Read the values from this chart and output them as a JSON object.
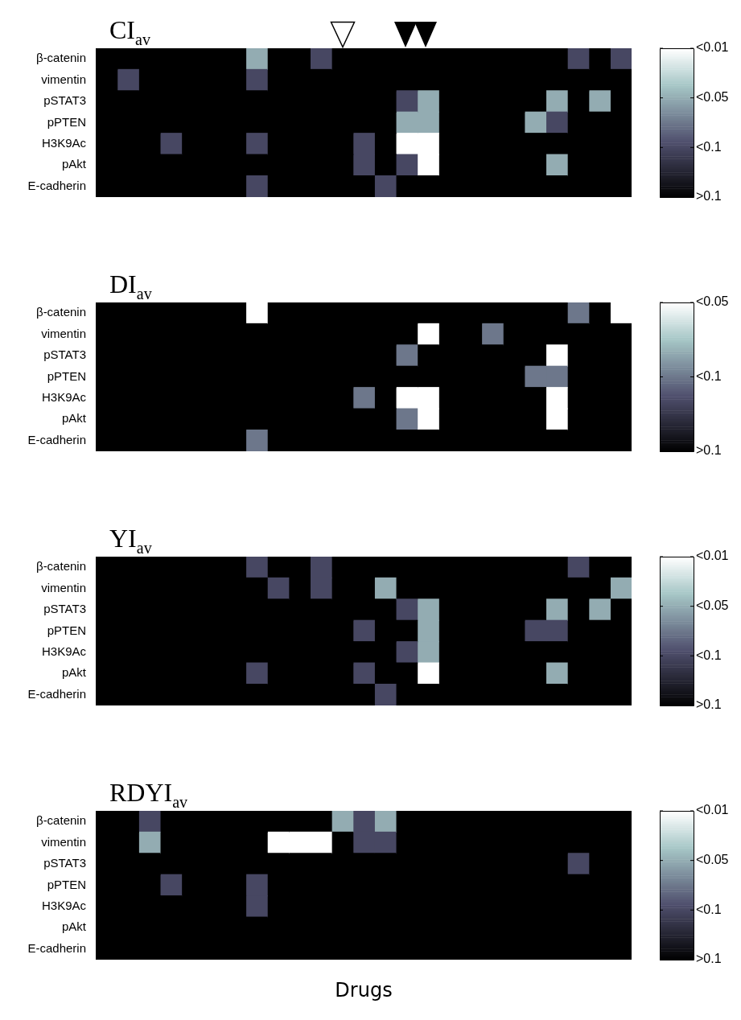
{
  "chart_data": [
    {
      "type": "heatmap",
      "title": "CI$_{av}$",
      "categories": [
        null,
        null,
        null,
        null,
        null,
        null,
        null,
        null,
        null,
        null,
        null,
        null,
        null,
        null,
        null,
        null,
        null,
        null,
        null,
        null,
        null,
        null,
        null,
        null,
        null
      ],
      "y_categories": [
        "β-catenin",
        "vimentin",
        "pSTAT3",
        "pPTEN",
        "H3K9Ac",
        "pAkt",
        "E-cadherin"
      ],
      "cells": [
        [
          0,
          0,
          0,
          0,
          0,
          0,
          0,
          2,
          0,
          0,
          1,
          0,
          0,
          0,
          0,
          0,
          0,
          0,
          0,
          0,
          0,
          0,
          1,
          0,
          1
        ],
        [
          0,
          1,
          0,
          0,
          0,
          0,
          0,
          1,
          0,
          0,
          0,
          0,
          0,
          0,
          0,
          0,
          0,
          0,
          0,
          0,
          0,
          0,
          0,
          0,
          0
        ],
        [
          0,
          0,
          0,
          0,
          0,
          0,
          0,
          0,
          0,
          0,
          0,
          0,
          0,
          0,
          1,
          2,
          0,
          0,
          0,
          0,
          0,
          2,
          0,
          2,
          0
        ],
        [
          0,
          0,
          0,
          0,
          0,
          0,
          0,
          0,
          0,
          0,
          0,
          0,
          0,
          0,
          2,
          2,
          0,
          0,
          0,
          0,
          2,
          1,
          0,
          0,
          0
        ],
        [
          0,
          0,
          0,
          1,
          0,
          0,
          0,
          1,
          0,
          0,
          0,
          0,
          1,
          0,
          3,
          3,
          0,
          0,
          0,
          0,
          0,
          0,
          0,
          0,
          0
        ],
        [
          0,
          0,
          0,
          0,
          0,
          0,
          0,
          0,
          0,
          0,
          0,
          0,
          1,
          0,
          1,
          3,
          0,
          0,
          0,
          0,
          0,
          2,
          0,
          0,
          0
        ],
        [
          0,
          0,
          0,
          0,
          0,
          0,
          0,
          1,
          0,
          0,
          0,
          0,
          0,
          1,
          0,
          0,
          0,
          0,
          0,
          0,
          0,
          0,
          0,
          0,
          0
        ]
      ],
      "clim": [
        0,
        3
      ],
      "cticks": [
        {
          "value": 0,
          "label": ">0.1"
        },
        {
          "value": 1,
          "label": "<0.1"
        },
        {
          "value": 2,
          "label": "<0.05"
        },
        {
          "value": 3,
          "label": "<0.01"
        }
      ]
    },
    {
      "type": "heatmap",
      "title": "DI$_{av}$",
      "categories": [
        null,
        null,
        null,
        null,
        null,
        null,
        null,
        null,
        null,
        null,
        null,
        null,
        null,
        null,
        null,
        null,
        null,
        null,
        null,
        null,
        null,
        null,
        null,
        null,
        null
      ],
      "y_categories": [
        "β-catenin",
        "vimentin",
        "pSTAT3",
        "pPTEN",
        "H3K9Ac",
        "pAkt",
        "E-cadherin"
      ],
      "cells": [
        [
          0,
          0,
          0,
          0,
          0,
          0,
          0,
          2,
          0,
          0,
          0,
          0,
          0,
          0,
          0,
          0,
          0,
          0,
          0,
          0,
          0,
          0,
          1,
          0,
          2
        ],
        [
          0,
          0,
          0,
          0,
          0,
          0,
          0,
          0,
          0,
          0,
          0,
          0,
          0,
          0,
          0,
          2,
          0,
          0,
          1,
          0,
          0,
          0,
          0,
          0,
          0
        ],
        [
          0,
          0,
          0,
          0,
          0,
          0,
          0,
          0,
          0,
          0,
          0,
          0,
          0,
          0,
          1,
          0,
          0,
          0,
          0,
          0,
          0,
          2,
          0,
          0,
          0
        ],
        [
          0,
          0,
          0,
          0,
          0,
          0,
          0,
          0,
          0,
          0,
          0,
          0,
          0,
          0,
          0,
          0,
          0,
          0,
          0,
          0,
          1,
          1,
          0,
          0,
          0
        ],
        [
          0,
          0,
          0,
          0,
          0,
          0,
          0,
          0,
          0,
          0,
          0,
          0,
          1,
          0,
          2,
          2,
          0,
          0,
          0,
          0,
          0,
          2,
          0,
          0,
          0
        ],
        [
          0,
          0,
          0,
          0,
          0,
          0,
          0,
          0,
          0,
          0,
          0,
          0,
          0,
          0,
          1,
          2,
          0,
          0,
          0,
          0,
          0,
          2,
          0,
          0,
          0
        ],
        [
          0,
          0,
          0,
          0,
          0,
          0,
          0,
          1,
          0,
          0,
          0,
          0,
          0,
          0,
          0,
          0,
          0,
          0,
          0,
          0,
          0,
          0,
          0,
          0,
          0
        ]
      ],
      "clim": [
        0,
        2
      ],
      "cticks": [
        {
          "value": 0,
          "label": ">0.1"
        },
        {
          "value": 1,
          "label": "<0.1"
        },
        {
          "value": 2,
          "label": "<0.05"
        }
      ]
    },
    {
      "type": "heatmap",
      "title": "YI$_{av}$",
      "categories": [
        null,
        null,
        null,
        null,
        null,
        null,
        null,
        null,
        null,
        null,
        null,
        null,
        null,
        null,
        null,
        null,
        null,
        null,
        null,
        null,
        null,
        null,
        null,
        null,
        null
      ],
      "y_categories": [
        "β-catenin",
        "vimentin",
        "pSTAT3",
        "pPTEN",
        "H3K9Ac",
        "pAkt",
        "E-cadherin"
      ],
      "cells": [
        [
          0,
          0,
          0,
          0,
          0,
          0,
          0,
          1,
          0,
          0,
          1,
          0,
          0,
          0,
          0,
          0,
          0,
          0,
          0,
          0,
          0,
          0,
          1,
          0,
          0
        ],
        [
          0,
          0,
          0,
          0,
          0,
          0,
          0,
          0,
          1,
          0,
          1,
          0,
          0,
          2,
          0,
          0,
          0,
          0,
          0,
          0,
          0,
          0,
          0,
          0,
          2
        ],
        [
          0,
          0,
          0,
          0,
          0,
          0,
          0,
          0,
          0,
          0,
          0,
          0,
          0,
          0,
          1,
          2,
          0,
          0,
          0,
          0,
          0,
          2,
          0,
          2,
          0
        ],
        [
          0,
          0,
          0,
          0,
          0,
          0,
          0,
          0,
          0,
          0,
          0,
          0,
          1,
          0,
          0,
          2,
          0,
          0,
          0,
          0,
          1,
          1,
          0,
          0,
          0
        ],
        [
          0,
          0,
          0,
          0,
          0,
          0,
          0,
          0,
          0,
          0,
          0,
          0,
          0,
          0,
          1,
          2,
          0,
          0,
          0,
          0,
          0,
          0,
          0,
          0,
          0
        ],
        [
          0,
          0,
          0,
          0,
          0,
          0,
          0,
          1,
          0,
          0,
          0,
          0,
          1,
          0,
          0,
          3,
          0,
          0,
          0,
          0,
          0,
          2,
          0,
          0,
          0
        ],
        [
          0,
          0,
          0,
          0,
          0,
          0,
          0,
          0,
          0,
          0,
          0,
          0,
          0,
          1,
          0,
          0,
          0,
          0,
          0,
          0,
          0,
          0,
          0,
          0,
          0
        ]
      ],
      "clim": [
        0,
        3
      ],
      "cticks": [
        {
          "value": 0,
          "label": ">0.1"
        },
        {
          "value": 1,
          "label": "<0.1"
        },
        {
          "value": 2,
          "label": "<0.05"
        },
        {
          "value": 3,
          "label": "<0.01"
        }
      ]
    },
    {
      "type": "heatmap",
      "title": "RDYI$_{av}$",
      "xlabel": "Drugs",
      "categories": [
        null,
        null,
        null,
        null,
        null,
        null,
        null,
        null,
        null,
        null,
        null,
        null,
        null,
        null,
        null,
        null,
        null,
        null,
        null,
        null,
        null,
        null,
        null,
        null,
        null
      ],
      "y_categories": [
        "β-catenin",
        "vimentin",
        "pSTAT3",
        "pPTEN",
        "H3K9Ac",
        "pAkt",
        "E-cadherin"
      ],
      "cells": [
        [
          0,
          0,
          1,
          0,
          0,
          0,
          0,
          0,
          0,
          0,
          0,
          2,
          1,
          2,
          0,
          0,
          0,
          0,
          0,
          0,
          0,
          0,
          0,
          0,
          0
        ],
        [
          0,
          0,
          2,
          0,
          0,
          0,
          0,
          0,
          3,
          3,
          3,
          0,
          1,
          1,
          0,
          0,
          0,
          0,
          0,
          0,
          0,
          0,
          0,
          0,
          0
        ],
        [
          0,
          0,
          0,
          0,
          0,
          0,
          0,
          0,
          0,
          0,
          0,
          0,
          0,
          0,
          0,
          0,
          0,
          0,
          0,
          0,
          0,
          0,
          1,
          0,
          0
        ],
        [
          0,
          0,
          0,
          1,
          0,
          0,
          0,
          1,
          0,
          0,
          0,
          0,
          0,
          0,
          0,
          0,
          0,
          0,
          0,
          0,
          0,
          0,
          0,
          0,
          0
        ],
        [
          0,
          0,
          0,
          0,
          0,
          0,
          0,
          1,
          0,
          0,
          0,
          0,
          0,
          0,
          0,
          0,
          0,
          0,
          0,
          0,
          0,
          0,
          0,
          0,
          0
        ],
        [
          0,
          0,
          0,
          0,
          0,
          0,
          0,
          0,
          0,
          0,
          0,
          0,
          0,
          0,
          0,
          0,
          0,
          0,
          0,
          0,
          0,
          0,
          0,
          0,
          0
        ],
        [
          0,
          0,
          0,
          0,
          0,
          0,
          0,
          0,
          0,
          0,
          0,
          0,
          0,
          0,
          0,
          0,
          0,
          0,
          0,
          0,
          0,
          0,
          0,
          0,
          0
        ]
      ],
      "clim": [
        0,
        3
      ],
      "cticks": [
        {
          "value": 0,
          "label": ">0.1"
        },
        {
          "value": 1,
          "label": "<0.1"
        },
        {
          "value": 2,
          "label": "<0.05"
        },
        {
          "value": 3,
          "label": "<0.01"
        }
      ]
    }
  ]
}
